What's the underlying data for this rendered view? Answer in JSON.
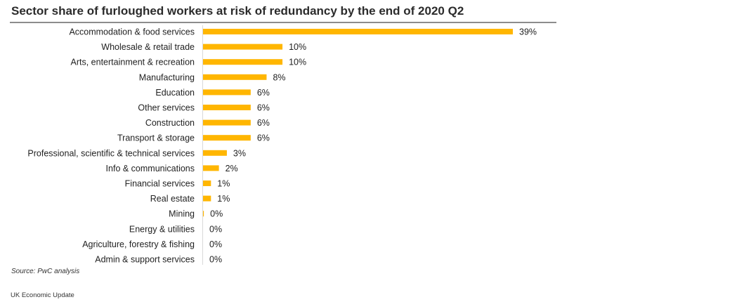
{
  "chart_data": {
    "type": "bar",
    "orientation": "horizontal",
    "title": "Sector share of furloughed workers at risk of redundancy by the end of 2020 Q2",
    "xlabel": "",
    "ylabel": "",
    "xlim": [
      0,
      39
    ],
    "grid": false,
    "bar_color": "#FFB600",
    "categories": [
      "Accommodation & food services",
      "Wholesale & retail trade",
      "Arts, entertainment & recreation",
      "Manufacturing",
      "Education",
      "Other services",
      "Construction",
      "Transport & storage",
      "Professional, scientific & technical services",
      "Info & communications",
      "Financial services",
      "Real estate",
      "Mining",
      "Energy & utilities",
      "Agriculture, forestry & fishing",
      "Admin & support services"
    ],
    "values": [
      39,
      10,
      10,
      8,
      6,
      6,
      6,
      6,
      3,
      2,
      1,
      1,
      0.1,
      0,
      0,
      0
    ],
    "value_labels": [
      "39%",
      "10%",
      "10%",
      "8%",
      "6%",
      "6%",
      "6%",
      "6%",
      "3%",
      "2%",
      "1%",
      "1%",
      "0%",
      "0%",
      "0%",
      "0%"
    ]
  },
  "source": "Source: PwC analysis",
  "footer": "UK Economic Update"
}
